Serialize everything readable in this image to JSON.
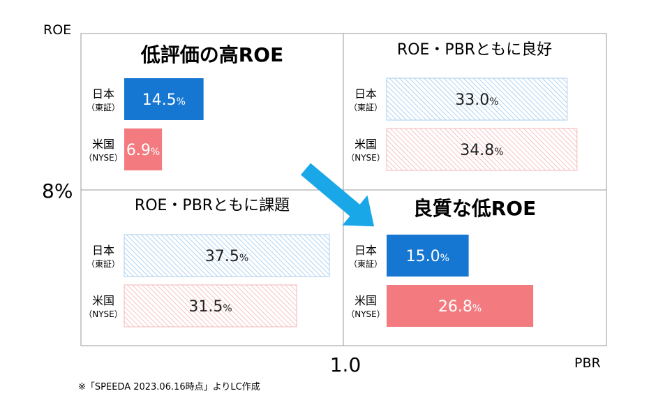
{
  "chart_data": {
    "type": "bar",
    "axes": {
      "x_label": "PBR",
      "y_label": "ROE",
      "x_threshold_label": "1.0",
      "y_threshold_label": "8%"
    },
    "categories": [
      {
        "main": "日本",
        "sub": "（東証）"
      },
      {
        "main": "米国",
        "sub": "（NYSE）"
      }
    ],
    "value_unit": "%",
    "value_max": 40,
    "quadrants": [
      {
        "title": "低評価の高ROE",
        "title_style": "bold",
        "bar_style": "solid",
        "values": [
          14.5,
          6.9
        ],
        "value_labels": [
          "14.5",
          "6.9"
        ]
      },
      {
        "title": "ROE・PBRともに良好",
        "title_style": "normal",
        "bar_style": "hatched",
        "values": [
          33.0,
          34.8
        ],
        "value_labels": [
          "33.0",
          "34.8"
        ]
      },
      {
        "title": "ROE・PBRともに課題",
        "title_style": "normal",
        "bar_style": "hatched",
        "values": [
          37.5,
          31.5
        ],
        "value_labels": [
          "37.5",
          "31.5"
        ]
      },
      {
        "title": "良質な低ROE",
        "title_style": "bold",
        "bar_style": "solid",
        "values": [
          15.0,
          26.8
        ],
        "value_labels": [
          "15.0",
          "26.8"
        ]
      }
    ],
    "colors": {
      "japan": "#1677d2",
      "us": "#f37b80",
      "grid": "#9a9a9a",
      "arrow": "#1aa7e8"
    }
  },
  "footnote": "※「SPEEDA 2023.06.16時点」よりLC作成"
}
